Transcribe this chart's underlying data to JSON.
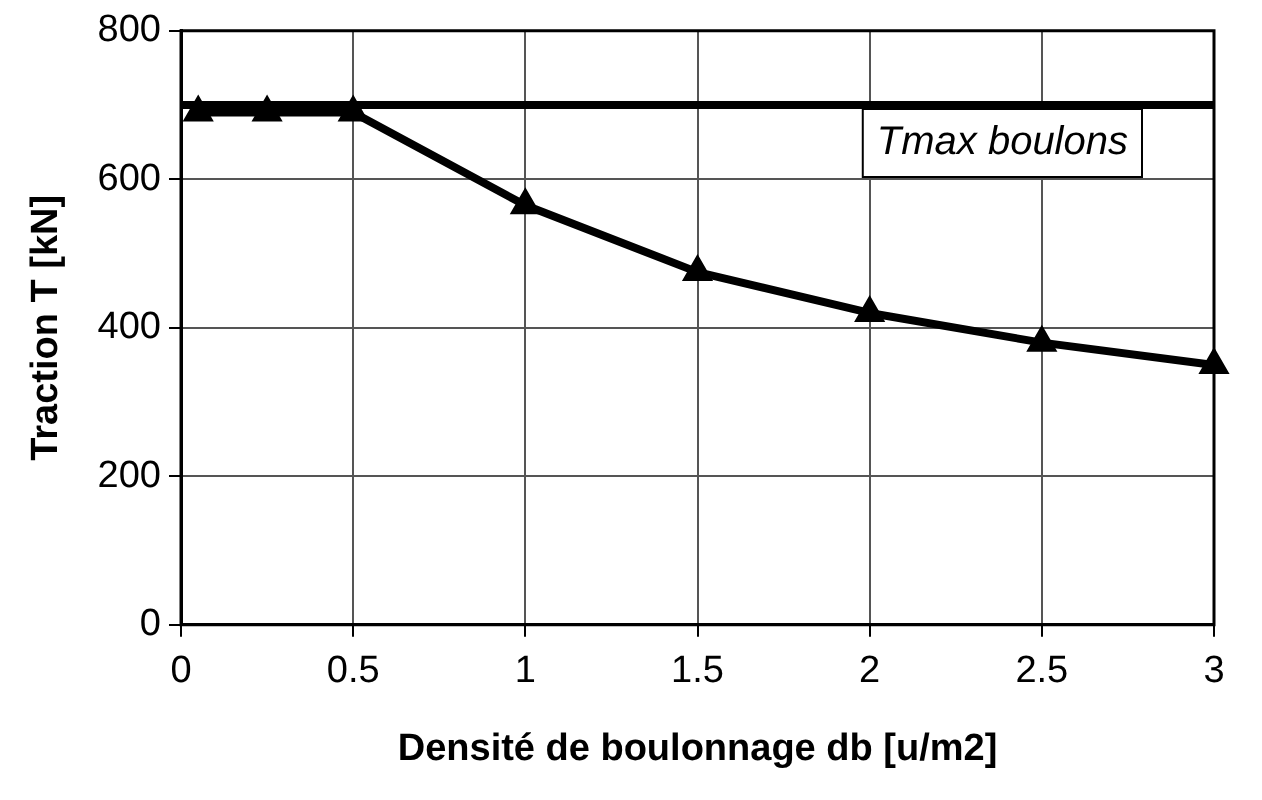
{
  "chart_data": {
    "type": "line",
    "xlabel": "Densité de boulonnage db [u/m2]",
    "ylabel": "Traction T [kN]",
    "x": [
      0.05,
      0.25,
      0.5,
      1,
      1.5,
      2,
      2.5,
      3
    ],
    "series": [
      {
        "color": "#000000",
        "values": [
          690,
          690,
          690,
          565,
          475,
          420,
          380,
          350
        ]
      }
    ],
    "xlim": [
      0,
      3
    ],
    "xticks": [
      0,
      0.5,
      1,
      1.5,
      2,
      2.5,
      3
    ],
    "ylim": [
      0,
      800
    ],
    "yticks": [
      0,
      200,
      400,
      600,
      800
    ],
    "ref_lines": [
      {
        "axis": "y",
        "value": 700,
        "label": "Tmax boulons",
        "color": "#000000"
      }
    ],
    "grid": true,
    "legend": false,
    "marker": "triangle",
    "line_style": "solid"
  }
}
